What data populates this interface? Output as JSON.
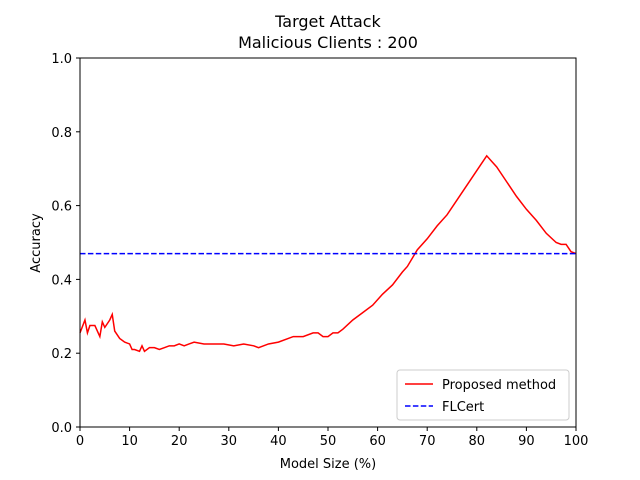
{
  "chart_data": {
    "type": "line",
    "title": "Target Attack",
    "subtitle": "Malicious Clients : 200",
    "xlabel": "Model Size (%)",
    "ylabel": "Accuracy",
    "xlim": [
      0,
      100
    ],
    "ylim": [
      0,
      1
    ],
    "xticks": [
      0,
      10,
      20,
      30,
      40,
      50,
      60,
      70,
      80,
      90,
      100
    ],
    "yticks": [
      {
        "value": 0,
        "label": "0.0"
      },
      0.2,
      0.4,
      0.6,
      0.8,
      {
        "value": 1,
        "label": "1.0"
      }
    ],
    "legend": "lower right",
    "series": [
      {
        "name": "Proposed method",
        "color": "#ff0000",
        "dash": "solid",
        "x": [
          0,
          1,
          1.5,
          2,
          3,
          4,
          4.5,
          5,
          6,
          6.5,
          7,
          8,
          9,
          10,
          10.5,
          11,
          12,
          12.5,
          13,
          14,
          15,
          16,
          17,
          18,
          19,
          20,
          21,
          22,
          23,
          25,
          27,
          29,
          31,
          33,
          35,
          36,
          38,
          40,
          42,
          43,
          45,
          47,
          48,
          49,
          50,
          51,
          52,
          53,
          55,
          57,
          59,
          61,
          63,
          65,
          66,
          68,
          70,
          72,
          74,
          76,
          78,
          80,
          81,
          82,
          83,
          84,
          86,
          88,
          90,
          92,
          94,
          96,
          97,
          98,
          99,
          100
        ],
        "values": [
          0.255,
          0.29,
          0.255,
          0.275,
          0.275,
          0.245,
          0.285,
          0.27,
          0.29,
          0.305,
          0.26,
          0.24,
          0.23,
          0.225,
          0.21,
          0.21,
          0.205,
          0.22,
          0.205,
          0.215,
          0.215,
          0.21,
          0.215,
          0.22,
          0.22,
          0.225,
          0.22,
          0.225,
          0.23,
          0.225,
          0.225,
          0.225,
          0.22,
          0.225,
          0.22,
          0.215,
          0.225,
          0.23,
          0.24,
          0.245,
          0.245,
          0.255,
          0.255,
          0.245,
          0.245,
          0.255,
          0.255,
          0.265,
          0.29,
          0.31,
          0.33,
          0.36,
          0.385,
          0.42,
          0.435,
          0.48,
          0.51,
          0.545,
          0.575,
          0.615,
          0.655,
          0.695,
          0.715,
          0.735,
          0.72,
          0.705,
          0.665,
          0.625,
          0.59,
          0.56,
          0.525,
          0.5,
          0.495,
          0.495,
          0.475,
          0.47
        ]
      },
      {
        "name": "FLCert",
        "color": "#0000ff",
        "dash": "dashed",
        "x": [
          0,
          100
        ],
        "values": [
          0.47,
          0.47
        ]
      }
    ]
  }
}
